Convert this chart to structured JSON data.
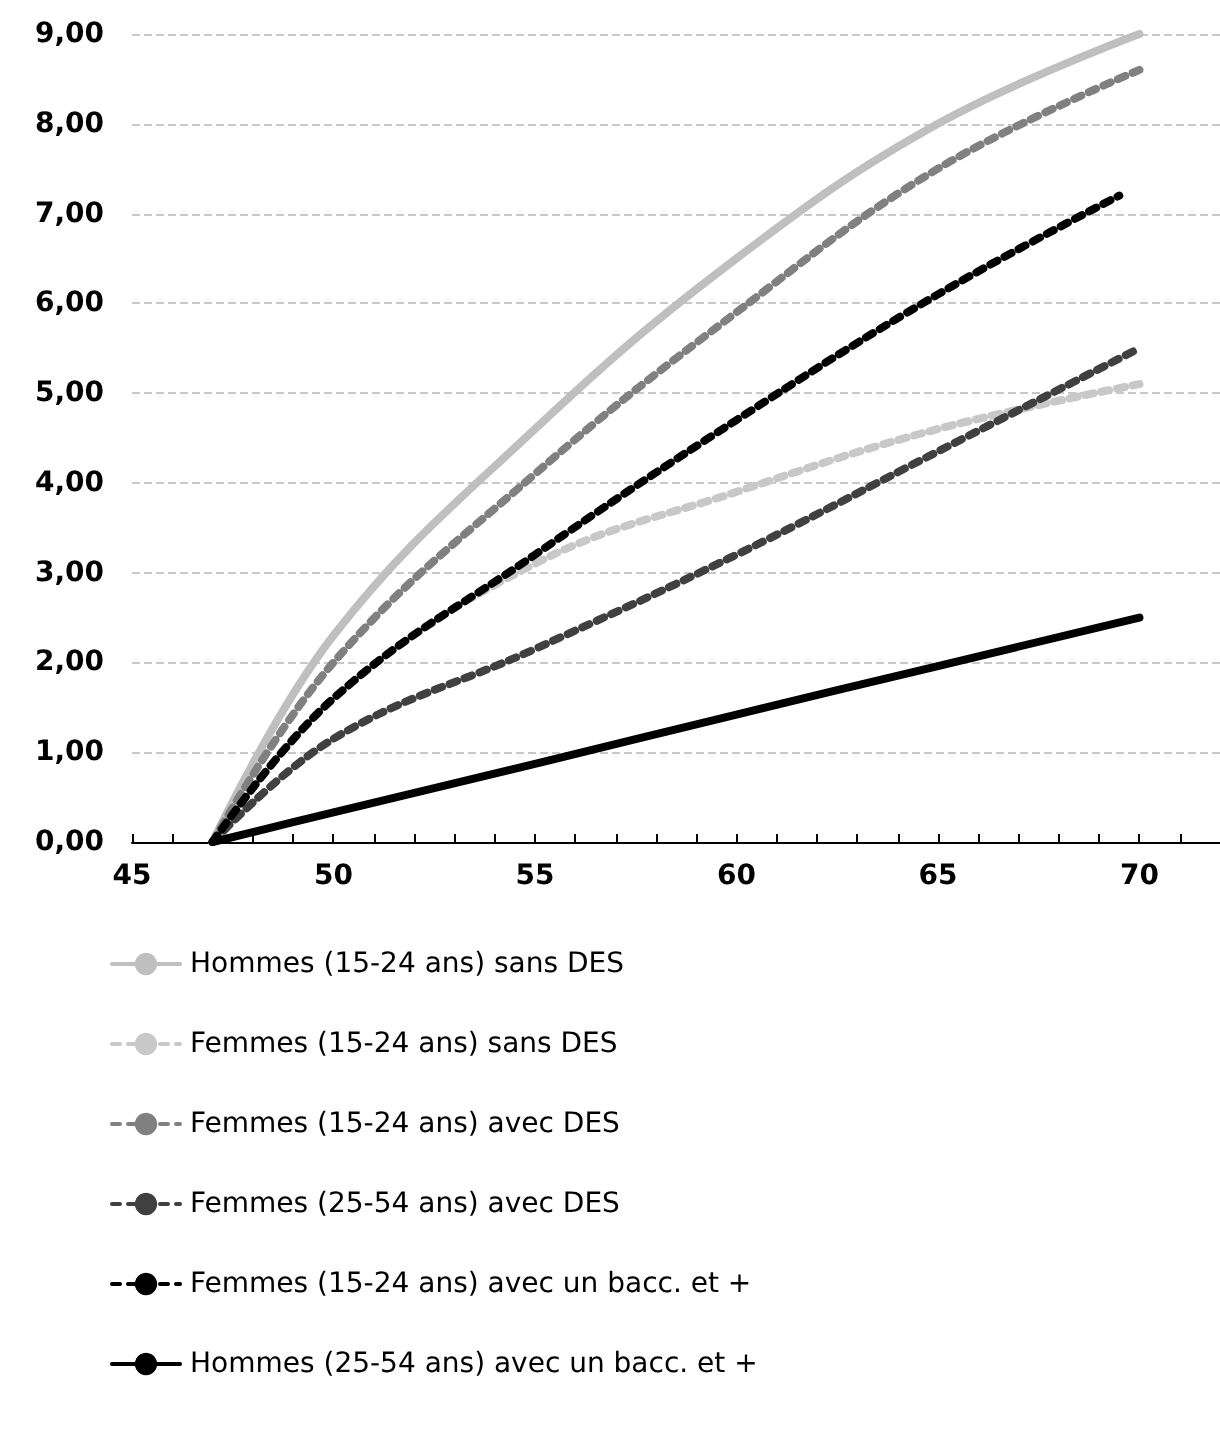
{
  "chart_data": {
    "type": "line",
    "legend": "bottom",
    "grid": "y",
    "xlim": [
      45,
      72
    ],
    "xticks": [
      45,
      {
        "value": 46,
        "label": null
      },
      {
        "value": 47,
        "label": null
      },
      {
        "value": 48,
        "label": null
      },
      {
        "value": 49,
        "label": null
      },
      50,
      {
        "value": 51,
        "label": null
      },
      {
        "value": 52,
        "label": null
      },
      {
        "value": 53,
        "label": null
      },
      {
        "value": 54,
        "label": null
      },
      55,
      {
        "value": 56,
        "label": null
      },
      {
        "value": 57,
        "label": null
      },
      {
        "value": 58,
        "label": null
      },
      {
        "value": 59,
        "label": null
      },
      60,
      {
        "value": 61,
        "label": null
      },
      {
        "value": 62,
        "label": null
      },
      {
        "value": 63,
        "label": null
      },
      {
        "value": 64,
        "label": null
      },
      65,
      {
        "value": 66,
        "label": null
      },
      {
        "value": 67,
        "label": null
      },
      {
        "value": 68,
        "label": null
      },
      {
        "value": 69,
        "label": null
      },
      70,
      {
        "value": 71,
        "label": null
      },
      {
        "value": 72,
        "label": null
      }
    ],
    "ylim": [
      0,
      9
    ],
    "yticks": [
      {
        "value": 0,
        "label": "0,00"
      },
      {
        "value": 1,
        "label": "1,00"
      },
      {
        "value": 2,
        "label": "2,00"
      },
      {
        "value": 3,
        "label": "3,00"
      },
      {
        "value": 4,
        "label": "4,00"
      },
      {
        "value": 5,
        "label": "5,00"
      },
      {
        "value": 6,
        "label": "6,00"
      },
      {
        "value": 7,
        "label": "7,00"
      },
      {
        "value": 8,
        "label": "8,00"
      },
      {
        "value": 9,
        "label": "9,00"
      }
    ],
    "series": [
      {
        "name": "Hommes (15-24 ans) sans DES",
        "color": "#bfbfbf",
        "line_style": "solid",
        "x": [
          47,
          50,
          55,
          60,
          65,
          70
        ],
        "values": [
          0,
          2.3,
          4.6,
          6.5,
          8.0,
          9.0
        ]
      },
      {
        "name": "Femmes (15-24 ans) sans DES",
        "color": "#c8c8c8",
        "line_style": "dashed",
        "x": [
          47,
          50,
          55,
          60,
          65,
          70
        ],
        "values": [
          0,
          1.6,
          3.1,
          3.9,
          4.6,
          5.1
        ]
      },
      {
        "name": "Femmes (15-24 ans) avec DES",
        "color": "#808080",
        "line_style": "dashed",
        "x": [
          47,
          50,
          55,
          60,
          65,
          70
        ],
        "values": [
          0,
          2.0,
          4.1,
          5.9,
          7.5,
          8.6
        ]
      },
      {
        "name": "Femmes (25-54 ans) avec DES",
        "color": "#404040",
        "line_style": "dashed",
        "x": [
          47,
          50,
          55,
          60,
          65,
          70
        ],
        "values": [
          0,
          1.15,
          2.15,
          3.2,
          4.35,
          5.5
        ]
      },
      {
        "name": "Femmes (15-24 ans) avec un bacc. et +",
        "color": "#000000",
        "line_style": "dashed",
        "x": [
          47,
          50,
          55,
          60,
          65,
          69.5
        ],
        "values": [
          0,
          1.6,
          3.2,
          4.7,
          6.1,
          7.2
        ]
      },
      {
        "name": "Hommes (25-54 ans) avec un bacc. et +",
        "color": "#000000",
        "line_style": "solid",
        "x": [
          47,
          50,
          55,
          60,
          65,
          70
        ],
        "values": [
          0,
          0.33,
          0.87,
          1.42,
          1.96,
          2.5
        ]
      }
    ]
  }
}
